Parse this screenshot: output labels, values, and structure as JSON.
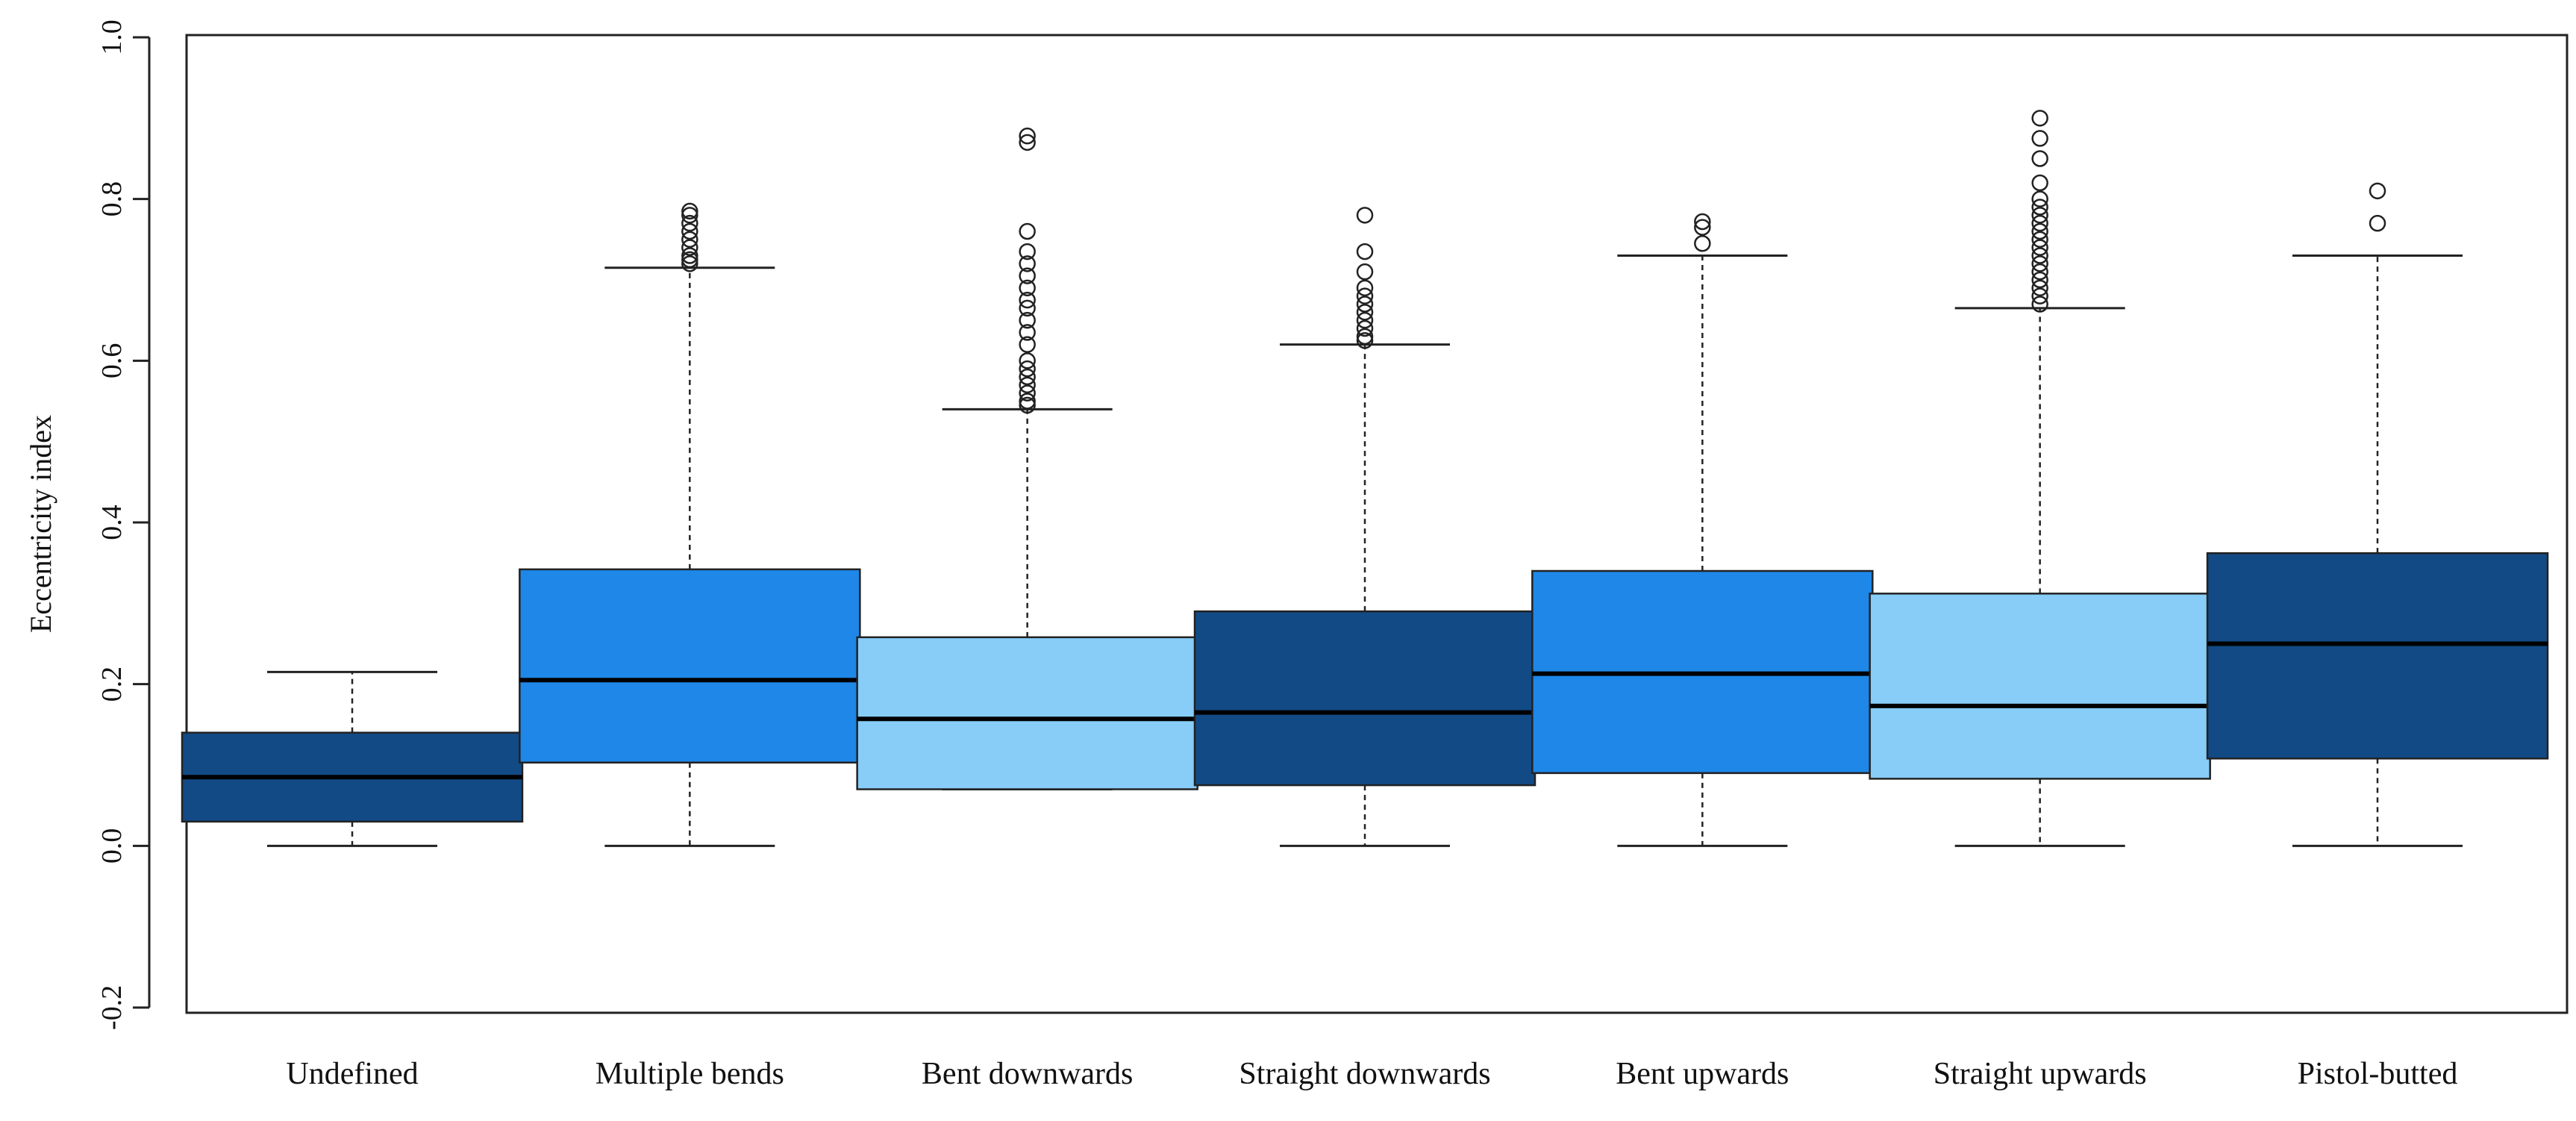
{
  "chart_data": {
    "type": "box",
    "title": "",
    "xlabel": "",
    "ylabel": "Eccentricity index",
    "ylim": [
      -0.2,
      1.0
    ],
    "yticks": [
      -0.2,
      0.0,
      0.2,
      0.4,
      0.6,
      0.8,
      1.0
    ],
    "ytick_labels": [
      "-0.2",
      "0.0",
      "0.2",
      "0.4",
      "0.6",
      "0.8",
      "1.0"
    ],
    "grid": false,
    "categories": [
      "Undefined",
      "Multiple bends",
      "Bent downwards",
      "Straight downwards",
      "Bent upwards",
      "Straight upwards",
      "Pistol-butted"
    ],
    "boxes": [
      {
        "name": "Undefined",
        "min": 0.0,
        "q1": 0.03,
        "median": 0.085,
        "q3": 0.14,
        "max": 0.215,
        "outliers": [],
        "color": "#124a85"
      },
      {
        "name": "Multiple bends",
        "min": 0.0,
        "q1": 0.103,
        "median": 0.205,
        "q3": 0.342,
        "max": 0.715,
        "outliers": [
          0.72,
          0.725,
          0.73,
          0.74,
          0.75,
          0.76,
          0.77,
          0.78,
          0.785
        ],
        "color": "#1e87e8"
      },
      {
        "name": "Bent downwards",
        "min": 0.07,
        "q1": 0.07,
        "median": 0.157,
        "q3": 0.258,
        "max": 0.54,
        "outliers": [
          0.545,
          0.55,
          0.56,
          0.57,
          0.58,
          0.59,
          0.6,
          0.62,
          0.635,
          0.65,
          0.665,
          0.675,
          0.69,
          0.705,
          0.72,
          0.735,
          0.76,
          0.87,
          0.878
        ],
        "color": "#87cdf8"
      },
      {
        "name": "Straight downwards",
        "min": 0.0,
        "q1": 0.075,
        "median": 0.165,
        "q3": 0.29,
        "max": 0.62,
        "outliers": [
          0.625,
          0.63,
          0.64,
          0.65,
          0.66,
          0.67,
          0.68,
          0.69,
          0.71,
          0.735,
          0.78
        ],
        "color": "#124a85"
      },
      {
        "name": "Bent upwards",
        "min": 0.0,
        "q1": 0.09,
        "median": 0.213,
        "q3": 0.34,
        "max": 0.73,
        "outliers": [
          0.745,
          0.765,
          0.772
        ],
        "color": "#1e87e8"
      },
      {
        "name": "Straight upwards",
        "min": 0.0,
        "q1": 0.083,
        "median": 0.173,
        "q3": 0.312,
        "max": 0.665,
        "outliers": [
          0.67,
          0.68,
          0.69,
          0.7,
          0.71,
          0.72,
          0.73,
          0.74,
          0.75,
          0.76,
          0.77,
          0.78,
          0.79,
          0.8,
          0.82,
          0.85,
          0.875,
          0.9
        ],
        "color": "#87cdf8"
      },
      {
        "name": "Pistol-butted",
        "min": 0.0,
        "q1": 0.108,
        "median": 0.25,
        "q3": 0.362,
        "max": 0.73,
        "outliers": [
          0.77,
          0.81
        ],
        "color": "#124a85"
      }
    ]
  }
}
